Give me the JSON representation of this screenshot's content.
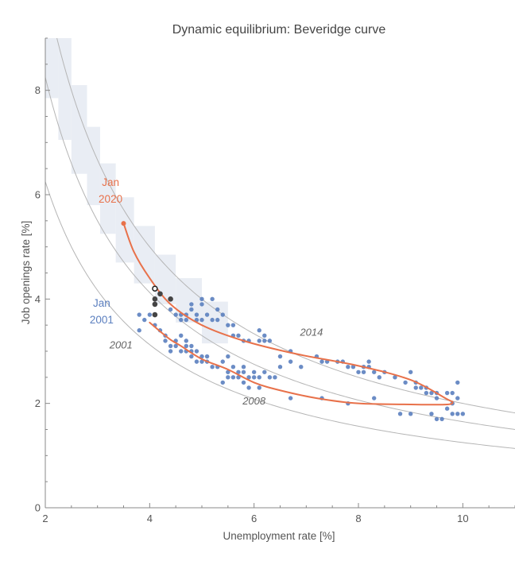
{
  "chart_data": {
    "type": "scatter",
    "title": "Dynamic equilibrium: Beveridge curve",
    "xlabel": "Unemployment rate [%]",
    "ylabel": "Job openings rate [%]",
    "xlim": [
      2,
      11
    ],
    "ylim": [
      0,
      9
    ],
    "xticks": [
      2,
      4,
      6,
      8,
      10
    ],
    "yticks": [
      0,
      2,
      4,
      6,
      8
    ],
    "colors": {
      "scatter": "#5b7fbf",
      "path": "#e8714a",
      "recent": "#444444",
      "curves": "#b5b5b5",
      "band": "#e9edf4"
    },
    "reference_curves": [
      {
        "name": "lower",
        "k": 12.5
      },
      {
        "name": "middle",
        "k": 16.5
      },
      {
        "name": "upper",
        "k": 20.0
      }
    ],
    "band_steps": [
      {
        "x": [
          2.0,
          2.25
        ],
        "y": [
          7.85,
          9.0
        ]
      },
      {
        "x": [
          2.25,
          2.5
        ],
        "y": [
          7.05,
          9.0
        ]
      },
      {
        "x": [
          2.5,
          2.8
        ],
        "y": [
          6.4,
          8.1
        ]
      },
      {
        "x": [
          2.8,
          3.05
        ],
        "y": [
          5.8,
          7.3
        ]
      },
      {
        "x": [
          3.05,
          3.35
        ],
        "y": [
          5.25,
          6.6
        ]
      },
      {
        "x": [
          3.35,
          3.7
        ],
        "y": [
          4.7,
          5.95
        ]
      },
      {
        "x": [
          3.7,
          4.1
        ],
        "y": [
          4.3,
          5.4
        ]
      },
      {
        "x": [
          4.1,
          4.5
        ],
        "y": [
          3.9,
          4.85
        ]
      },
      {
        "x": [
          4.5,
          5.0
        ],
        "y": [
          3.55,
          4.4
        ]
      },
      {
        "x": [
          5.0,
          5.5
        ],
        "y": [
          3.15,
          3.95
        ]
      }
    ],
    "series": [
      {
        "name": "Monthly observations",
        "points": [
          [
            3.8,
            3.7
          ],
          [
            3.8,
            3.4
          ],
          [
            3.9,
            3.6
          ],
          [
            4.0,
            3.7
          ],
          [
            4.1,
            3.5
          ],
          [
            4.2,
            3.4
          ],
          [
            4.3,
            3.3
          ],
          [
            4.3,
            3.2
          ],
          [
            4.4,
            3.1
          ],
          [
            4.4,
            3.0
          ],
          [
            4.5,
            3.2
          ],
          [
            4.5,
            3.1
          ],
          [
            4.6,
            3.0
          ],
          [
            4.6,
            3.3
          ],
          [
            4.7,
            3.2
          ],
          [
            4.7,
            3.1
          ],
          [
            4.7,
            3.0
          ],
          [
            4.8,
            3.0
          ],
          [
            4.8,
            2.9
          ],
          [
            4.8,
            3.1
          ],
          [
            4.9,
            3.0
          ],
          [
            4.9,
            2.8
          ],
          [
            5.0,
            2.8
          ],
          [
            5.0,
            2.9
          ],
          [
            5.1,
            2.9
          ],
          [
            5.1,
            2.8
          ],
          [
            5.2,
            2.7
          ],
          [
            5.3,
            2.7
          ],
          [
            5.4,
            2.8
          ],
          [
            5.4,
            2.4
          ],
          [
            5.5,
            2.5
          ],
          [
            5.5,
            2.6
          ],
          [
            5.5,
            2.9
          ],
          [
            5.6,
            2.5
          ],
          [
            5.6,
            2.7
          ],
          [
            5.7,
            2.6
          ],
          [
            5.7,
            2.5
          ],
          [
            5.8,
            2.6
          ],
          [
            5.8,
            2.4
          ],
          [
            5.8,
            2.7
          ],
          [
            5.9,
            2.5
          ],
          [
            5.9,
            2.3
          ],
          [
            6.0,
            2.6
          ],
          [
            6.0,
            2.5
          ],
          [
            6.1,
            2.3
          ],
          [
            6.1,
            2.5
          ],
          [
            6.2,
            2.6
          ],
          [
            6.3,
            2.5
          ],
          [
            6.4,
            2.5
          ],
          [
            6.5,
            2.7
          ],
          [
            6.7,
            2.1
          ],
          [
            7.3,
            2.1
          ],
          [
            7.8,
            2.0
          ],
          [
            8.3,
            2.1
          ],
          [
            8.8,
            1.8
          ],
          [
            9.0,
            1.8
          ],
          [
            9.1,
            2.3
          ],
          [
            9.3,
            2.2
          ],
          [
            9.4,
            1.8
          ],
          [
            9.5,
            1.7
          ],
          [
            9.6,
            1.7
          ],
          [
            9.7,
            1.9
          ],
          [
            9.8,
            1.8
          ],
          [
            9.8,
            2.0
          ],
          [
            9.9,
            1.8
          ],
          [
            10.0,
            1.8
          ],
          [
            4.4,
            3.8
          ],
          [
            4.5,
            3.7
          ],
          [
            4.6,
            3.7
          ],
          [
            4.6,
            3.6
          ],
          [
            4.7,
            3.7
          ],
          [
            4.7,
            3.6
          ],
          [
            4.8,
            3.8
          ],
          [
            4.8,
            3.9
          ],
          [
            4.9,
            3.7
          ],
          [
            4.9,
            3.6
          ],
          [
            5.0,
            3.6
          ],
          [
            5.0,
            3.9
          ],
          [
            5.0,
            4.0
          ],
          [
            5.1,
            3.7
          ],
          [
            5.2,
            3.6
          ],
          [
            5.2,
            4.0
          ],
          [
            5.3,
            3.8
          ],
          [
            5.3,
            3.6
          ],
          [
            5.4,
            3.7
          ],
          [
            5.5,
            3.5
          ],
          [
            5.6,
            3.3
          ],
          [
            5.6,
            3.5
          ],
          [
            5.7,
            3.3
          ],
          [
            5.8,
            3.2
          ],
          [
            5.9,
            3.2
          ],
          [
            6.1,
            3.2
          ],
          [
            6.1,
            3.4
          ],
          [
            6.2,
            3.3
          ],
          [
            6.2,
            3.2
          ],
          [
            6.3,
            3.2
          ],
          [
            6.5,
            2.9
          ],
          [
            6.7,
            3.0
          ],
          [
            6.7,
            2.8
          ],
          [
            6.9,
            2.7
          ],
          [
            7.2,
            2.9
          ],
          [
            7.3,
            2.8
          ],
          [
            7.4,
            2.8
          ],
          [
            7.6,
            2.8
          ],
          [
            7.7,
            2.8
          ],
          [
            7.8,
            2.7
          ],
          [
            7.9,
            2.7
          ],
          [
            8.0,
            2.6
          ],
          [
            8.1,
            2.7
          ],
          [
            8.1,
            2.6
          ],
          [
            8.2,
            2.8
          ],
          [
            8.2,
            2.7
          ],
          [
            8.3,
            2.6
          ],
          [
            8.4,
            2.5
          ],
          [
            8.5,
            2.6
          ],
          [
            8.7,
            2.5
          ],
          [
            8.9,
            2.4
          ],
          [
            9.0,
            2.6
          ],
          [
            9.1,
            2.4
          ],
          [
            9.2,
            2.3
          ],
          [
            9.3,
            2.3
          ],
          [
            9.4,
            2.2
          ],
          [
            9.5,
            2.2
          ],
          [
            9.5,
            2.1
          ],
          [
            9.7,
            2.2
          ],
          [
            9.8,
            2.2
          ],
          [
            9.9,
            2.4
          ],
          [
            9.9,
            2.1
          ]
        ]
      },
      {
        "name": "Recent months",
        "points": [
          [
            4.1,
            3.7
          ],
          [
            4.1,
            3.9
          ],
          [
            4.1,
            4.0
          ],
          [
            4.2,
            4.1
          ],
          [
            4.4,
            4.0
          ]
        ]
      },
      {
        "name": "Latest month",
        "points": [
          [
            4.1,
            4.2
          ]
        ]
      }
    ],
    "path": [
      [
        3.5,
        5.45
      ],
      [
        3.7,
        4.9
      ],
      [
        4.0,
        4.4
      ],
      [
        4.4,
        3.9
      ],
      [
        5.0,
        3.5
      ],
      [
        5.8,
        3.2
      ],
      [
        6.8,
        2.95
      ],
      [
        8.0,
        2.72
      ],
      [
        9.0,
        2.45
      ],
      [
        9.7,
        2.08
      ],
      [
        9.8,
        2.03
      ],
      [
        9.7,
        1.98
      ],
      [
        9.0,
        1.98
      ],
      [
        8.0,
        2.0
      ],
      [
        7.2,
        2.1
      ],
      [
        6.5,
        2.25
      ],
      [
        6.0,
        2.4
      ],
      [
        5.5,
        2.65
      ],
      [
        5.0,
        2.85
      ],
      [
        4.6,
        3.1
      ],
      [
        4.4,
        3.22
      ],
      [
        4.2,
        3.38
      ],
      [
        4.0,
        3.55
      ]
    ],
    "path_start": [
      3.5,
      5.45
    ],
    "annotations": [
      {
        "text": "Jan",
        "x": 3.25,
        "y": 6.17,
        "color": "#e8714a"
      },
      {
        "text": "2020",
        "x": 3.25,
        "y": 5.85,
        "color": "#e8714a"
      },
      {
        "text": "Jan",
        "x": 3.08,
        "y": 3.85,
        "color": "#5b7fbf"
      },
      {
        "text": "2001",
        "x": 3.08,
        "y": 3.53,
        "color": "#5b7fbf"
      },
      {
        "text": "2001",
        "x": 3.45,
        "y": 3.05,
        "color": "#666666"
      },
      {
        "text": "2014",
        "x": 7.1,
        "y": 3.3,
        "color": "#666666"
      },
      {
        "text": "2008",
        "x": 6.0,
        "y": 1.98,
        "color": "#666666"
      }
    ]
  }
}
